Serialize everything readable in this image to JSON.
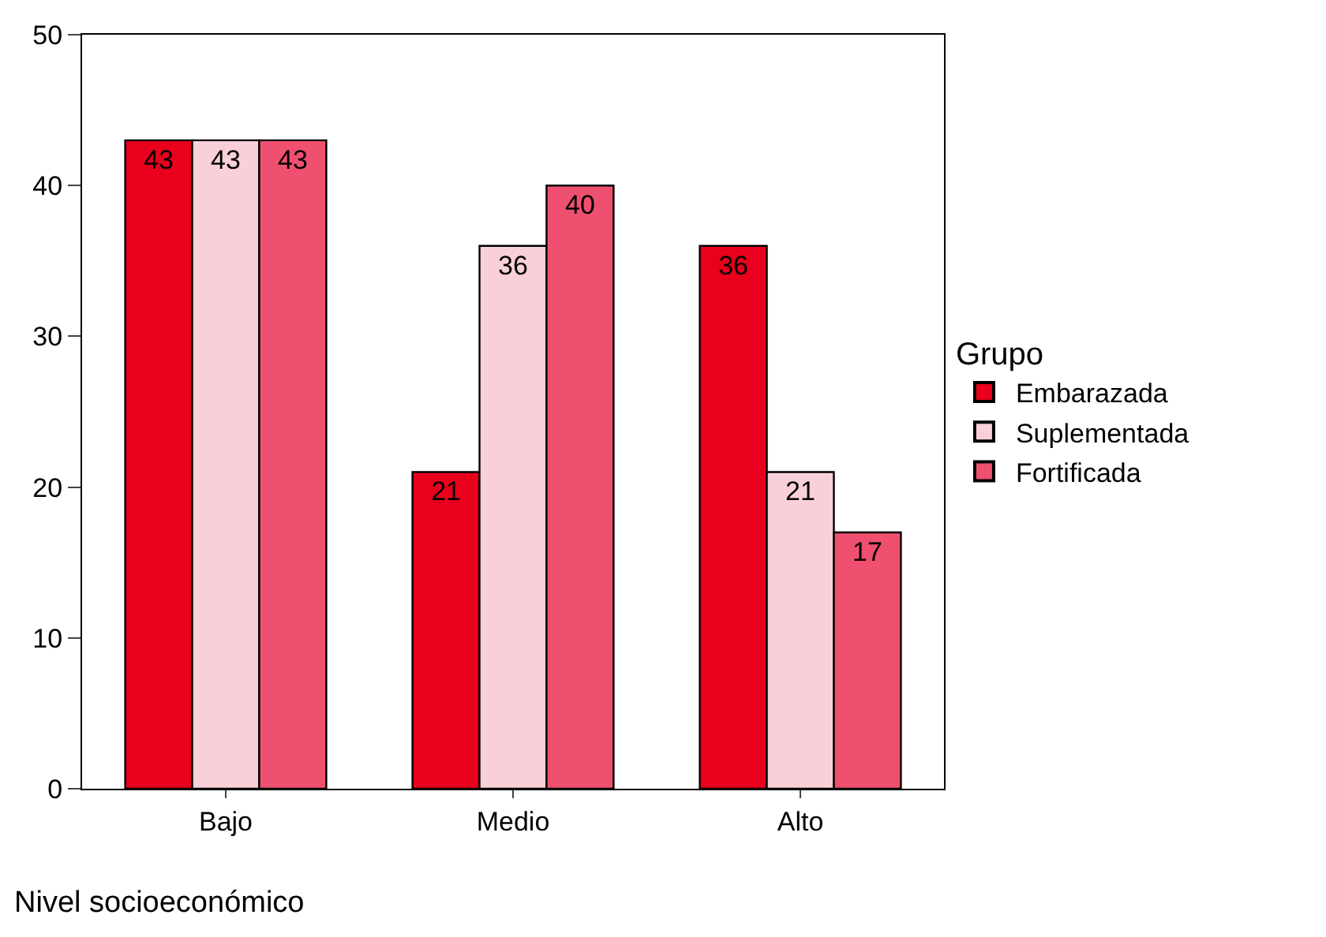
{
  "chart_data": {
    "type": "bar",
    "xlabel": "Nivel socioeconómico",
    "legend_title": "Grupo",
    "categories": [
      "Bajo",
      "Medio",
      "Alto"
    ],
    "series": [
      {
        "name": "Embarazada",
        "color": "#e8001c",
        "values": [
          43,
          21,
          36
        ]
      },
      {
        "name": "Suplementada",
        "color": "#f9d0d8",
        "values": [
          43,
          36,
          21
        ]
      },
      {
        "name": "Fortificada",
        "color": "#f05070",
        "values": [
          43,
          40,
          17
        ]
      }
    ],
    "ylim": [
      0,
      50
    ],
    "yticks": [
      0,
      10,
      20,
      30,
      40,
      50
    ],
    "legend": "right",
    "data_labels": true
  }
}
